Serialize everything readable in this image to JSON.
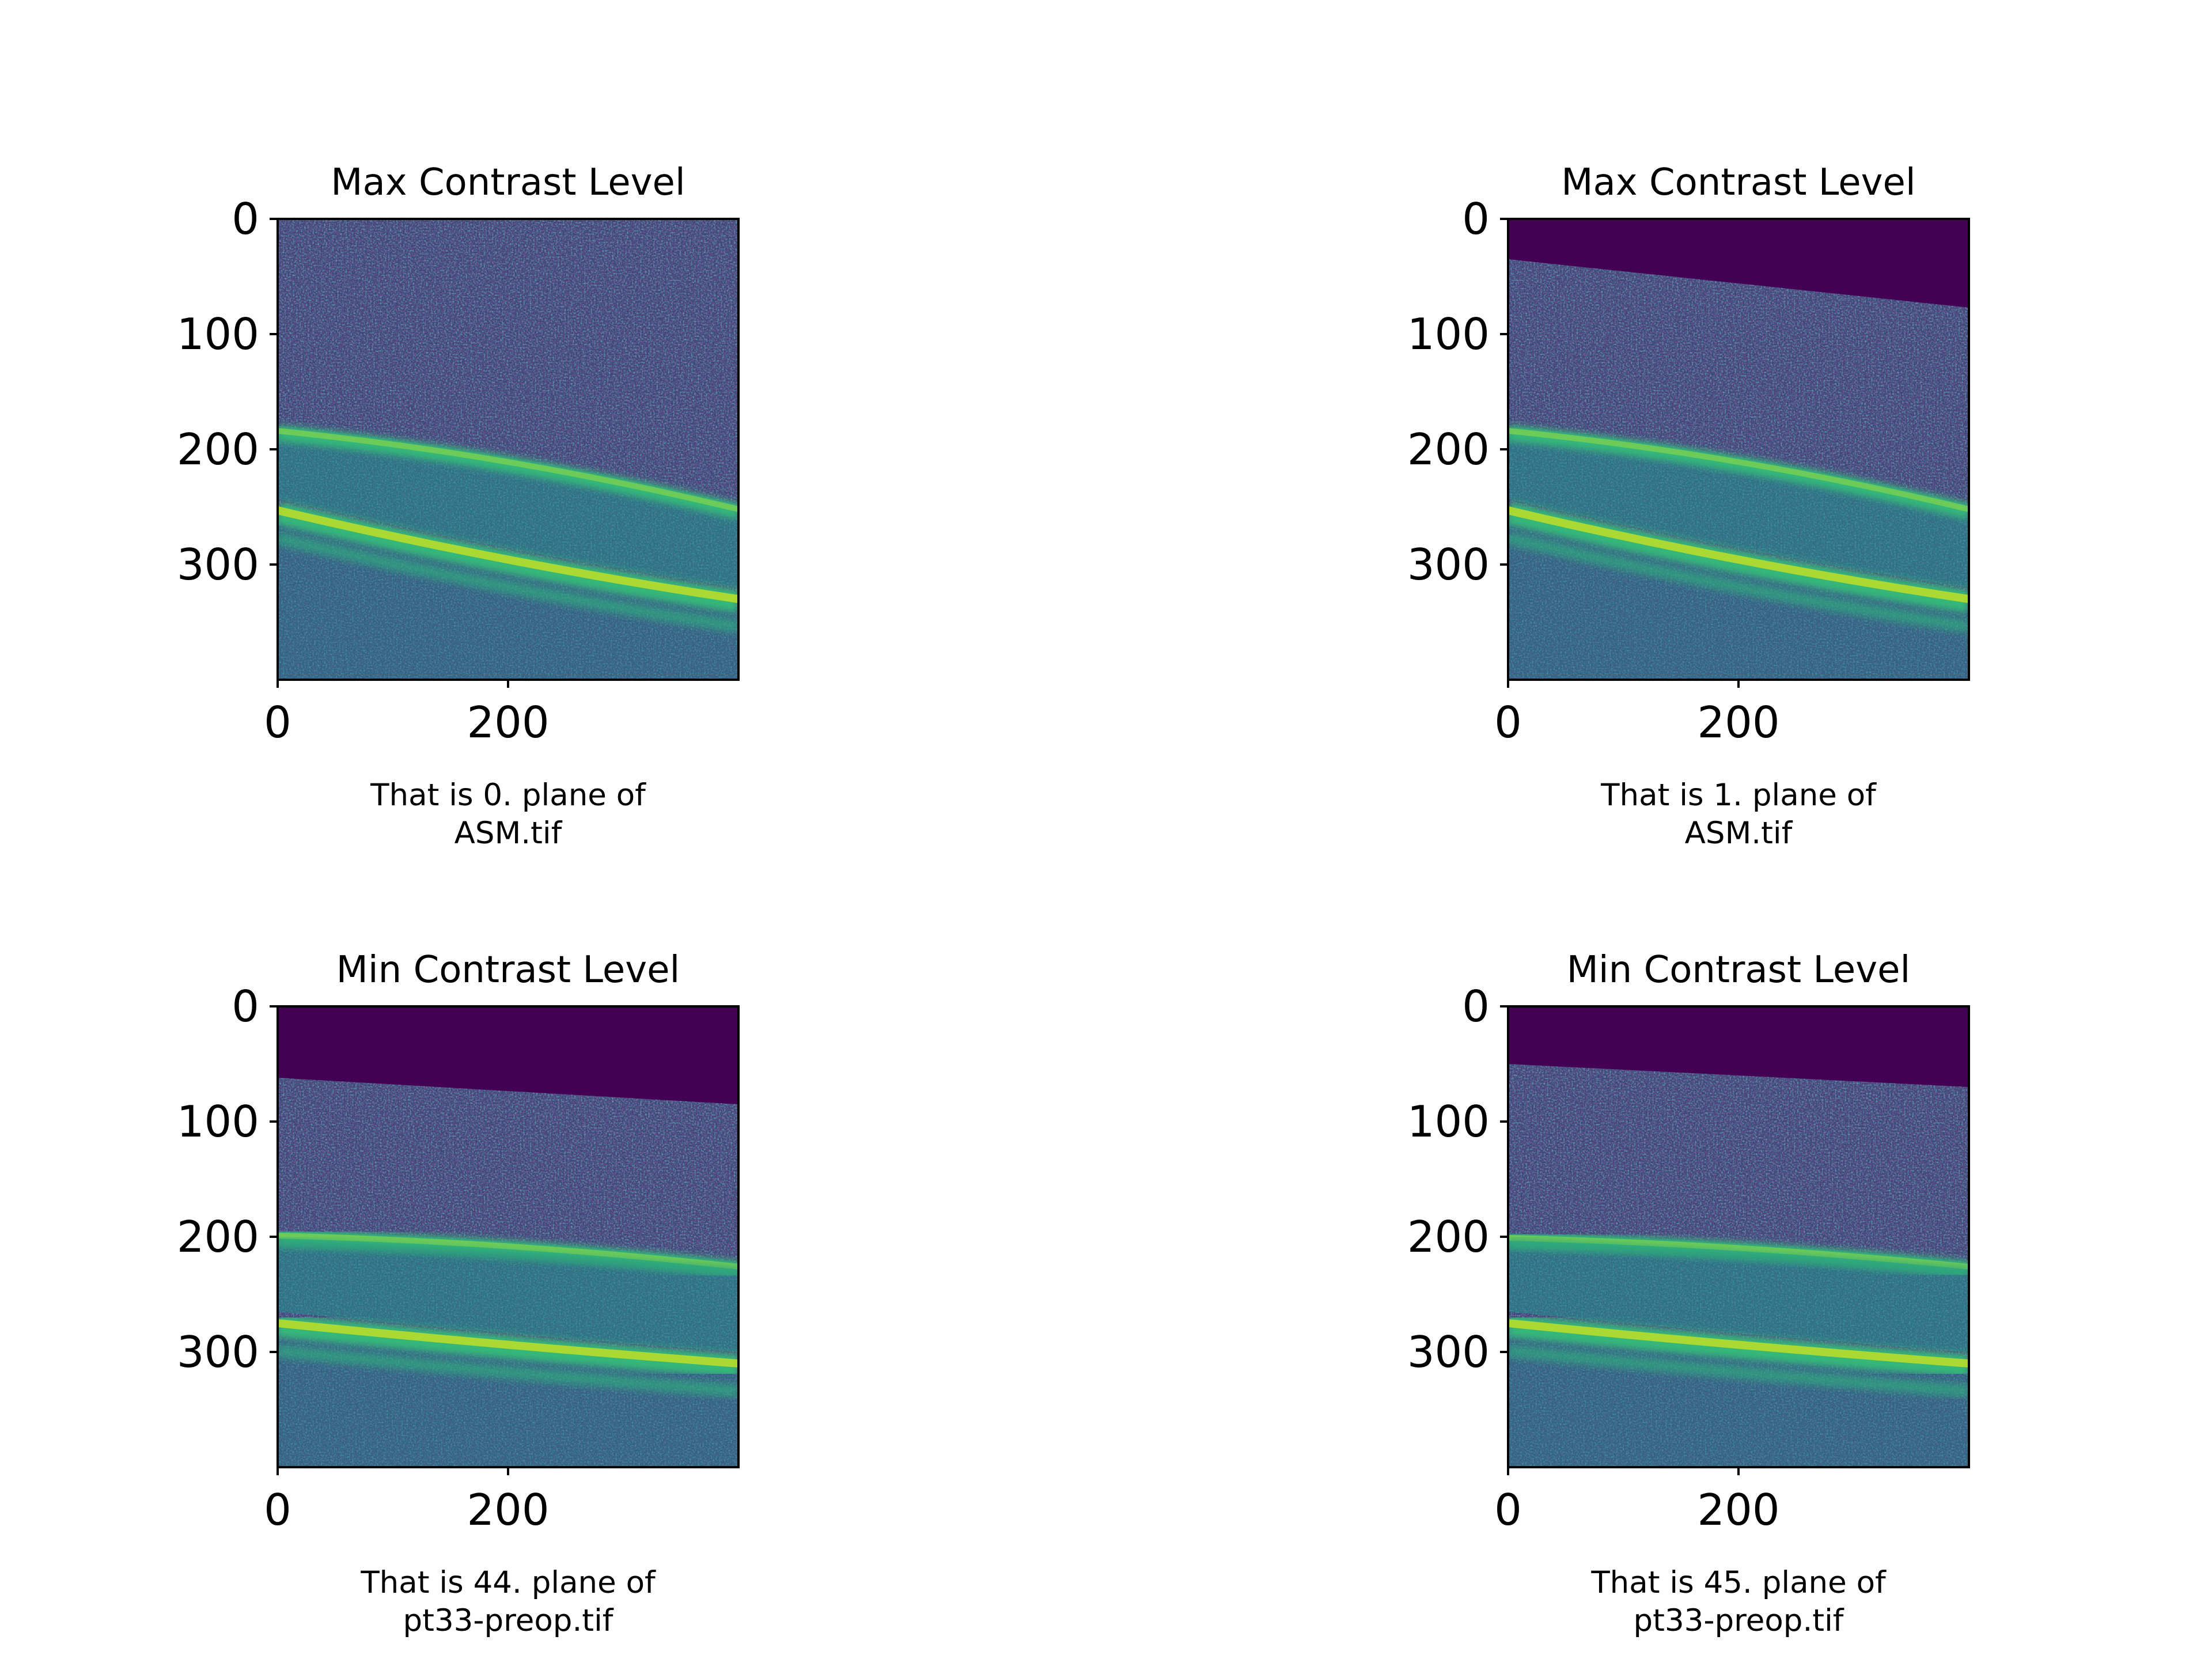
{
  "chart_data": [
    {
      "type": "heatmap",
      "title": "Max Contrast Level",
      "caption": [
        "That is 0. plane of",
        "ASM.tif"
      ],
      "xticks": [
        0,
        200
      ],
      "yticks": [
        0,
        100,
        200,
        300
      ],
      "xlim": [
        0,
        400
      ],
      "ylim": [
        400,
        0
      ],
      "image": {
        "colormap": "viridis",
        "masked_top_edge": null,
        "layer1_edge": [
          180,
          200,
          248
        ],
        "layer2_edge": [
          243,
          290,
          320
        ],
        "layer3_edge": null
      }
    },
    {
      "type": "heatmap",
      "title": "Max Contrast Level",
      "caption": [
        "That is 1. plane of",
        "ASM.tif"
      ],
      "xticks": [
        0,
        200
      ],
      "yticks": [
        0,
        100,
        200,
        300
      ],
      "xlim": [
        0,
        400
      ],
      "ylim": [
        400,
        0
      ],
      "image": {
        "colormap": "viridis",
        "masked_top_edge": [
          35,
          55,
          77
        ],
        "layer1_edge": [
          180,
          200,
          248
        ],
        "layer2_edge": [
          243,
          290,
          320
        ],
        "layer3_edge": null
      }
    },
    {
      "type": "heatmap",
      "title": "Min Contrast Level",
      "caption": [
        "That is 44. plane of",
        "pt33-preop.tif"
      ],
      "xticks": [
        0,
        200
      ],
      "yticks": [
        0,
        100,
        200,
        300
      ],
      "xlim": [
        0,
        400
      ],
      "ylim": [
        400,
        0
      ],
      "image": {
        "colormap": "viridis",
        "masked_top_edge": [
          62,
          78,
          85
        ],
        "layer1_edge": [
          195,
          200,
          222
        ],
        "layer2_edge": [
          265,
          285,
          300
        ],
        "layer3_edge": [
          205,
          215,
          230
        ]
      }
    },
    {
      "type": "heatmap",
      "title": "Min Contrast Level",
      "caption": [
        "That is 45. plane of",
        "pt33-preop.tif"
      ],
      "xticks": [
        0,
        200
      ],
      "yticks": [
        0,
        100,
        200,
        300
      ],
      "xlim": [
        0,
        400
      ],
      "ylim": [
        400,
        0
      ],
      "image": {
        "colormap": "viridis",
        "masked_top_edge": [
          50,
          63,
          70
        ],
        "layer1_edge": [
          197,
          202,
          222
        ],
        "layer2_edge": [
          265,
          285,
          300
        ],
        "layer3_edge": [
          205,
          215,
          230
        ]
      }
    }
  ]
}
